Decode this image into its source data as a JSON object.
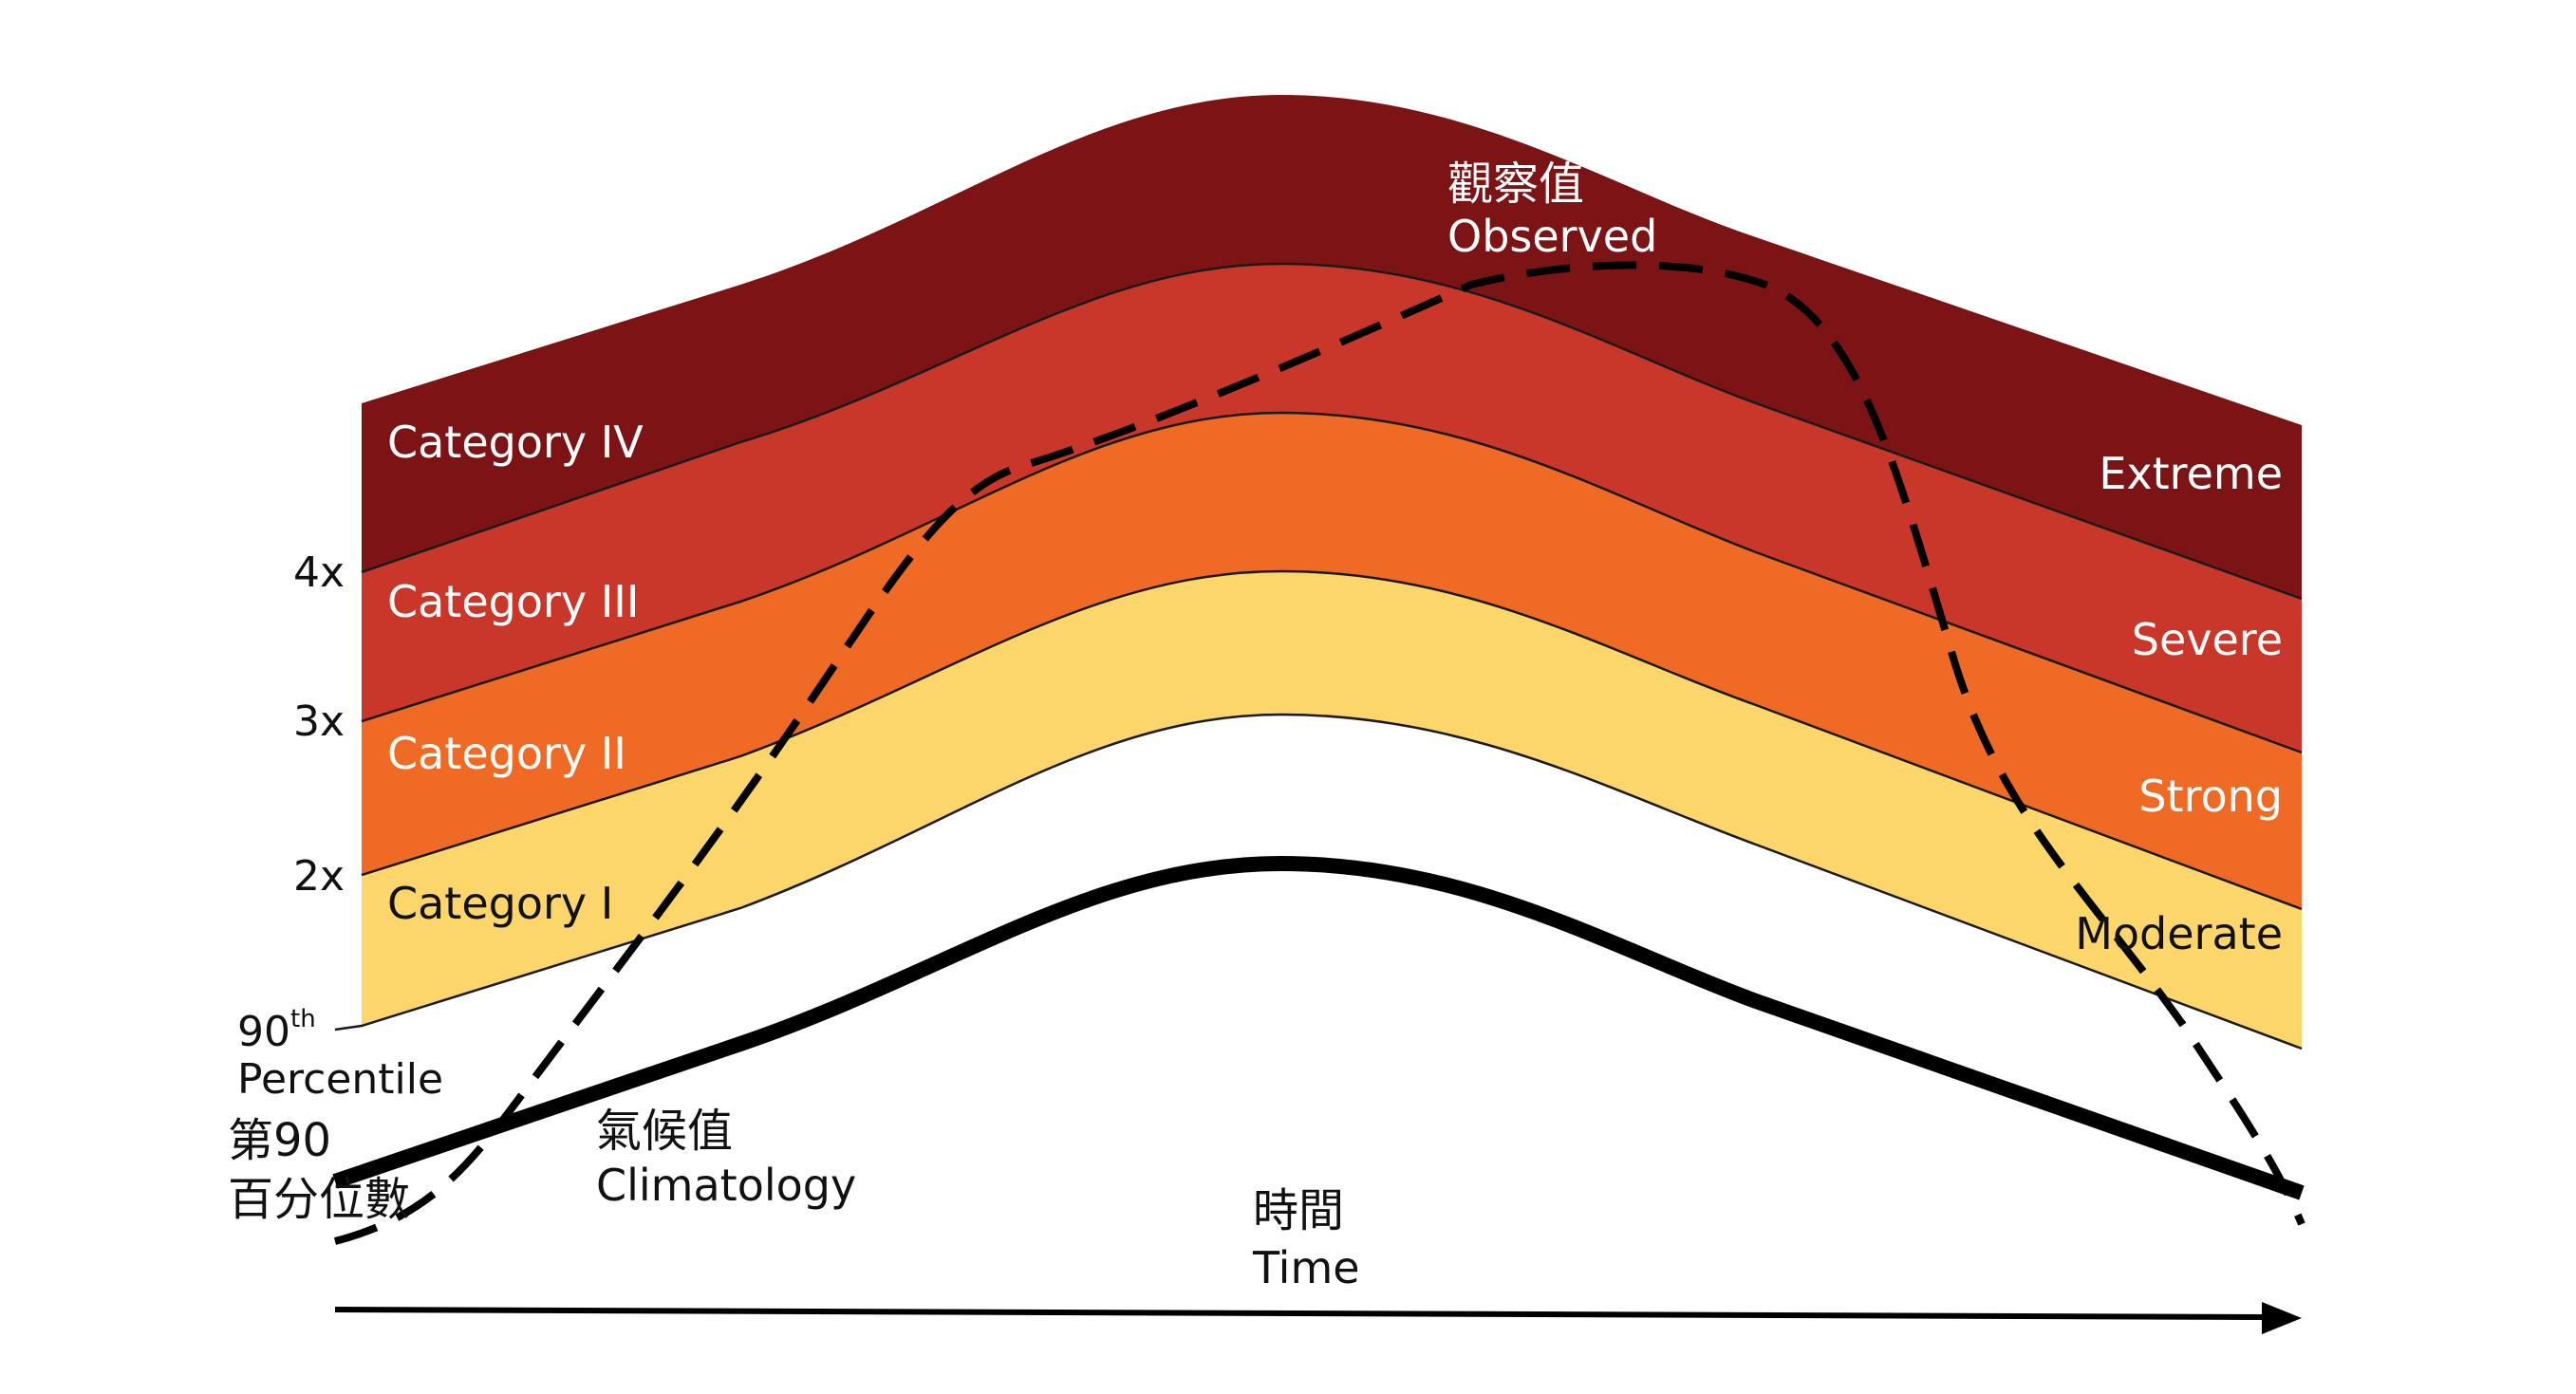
{
  "colors": {
    "extreme": "#7c1416",
    "severe": "#c9372a",
    "strong": "#ef6a24",
    "moderate": "#fcd56b",
    "line": "#000000",
    "label_light": "#ffffff",
    "label_dark": "#111111"
  },
  "bands": {
    "category_iv": "Category IV",
    "category_iii": "Category III",
    "category_ii": "Category II",
    "category_i": "Category I"
  },
  "intensity": {
    "extreme": "Extreme",
    "severe": "Severe",
    "strong": "Strong",
    "moderate": "Moderate"
  },
  "y_axis": {
    "tick_4x": "4x",
    "tick_3x": "3x",
    "tick_2x": "2x",
    "percentile_num": "90",
    "percentile_sup": "th",
    "percentile_word": "Percentile",
    "percentile_zh_1": "第90",
    "percentile_zh_2": "百分位數"
  },
  "lines": {
    "observed_zh": "觀察值",
    "observed_en": "Observed",
    "climatology_zh": "氣候值",
    "climatology_en": "Climatology"
  },
  "x_axis": {
    "time_zh": "時間",
    "time_en": "Time"
  }
}
